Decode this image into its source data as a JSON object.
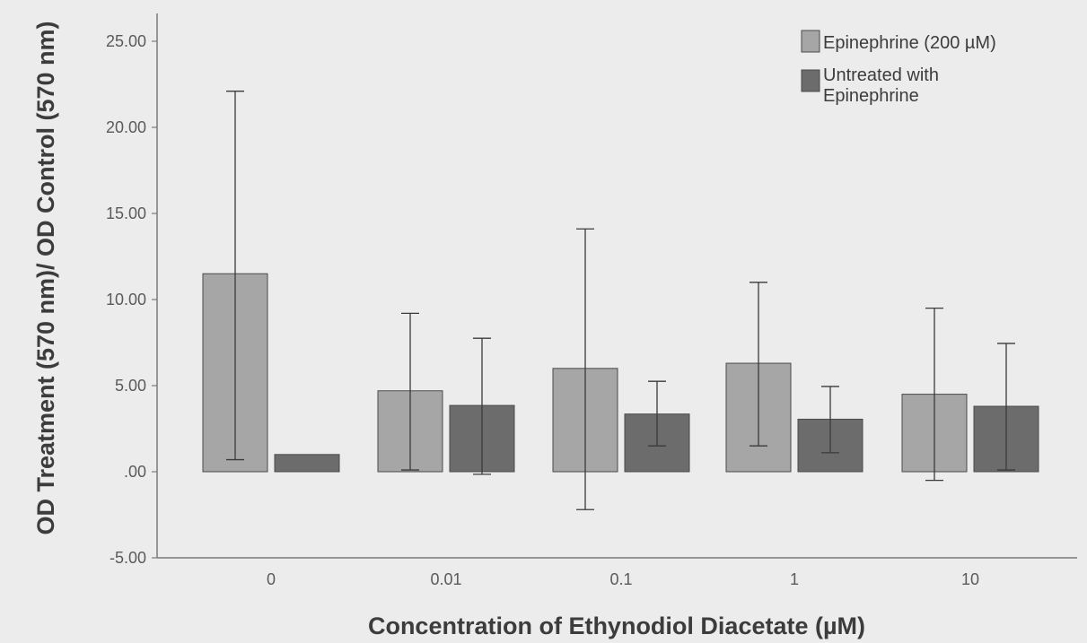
{
  "chart_data": {
    "type": "bar",
    "xlabel": "Concentration of Ethynodiol Diacetate (µM)",
    "ylabel": "OD Treatment (570 nm)/ OD Control (570 nm)",
    "ylim": [
      -5,
      25
    ],
    "yticks": [
      25,
      20,
      15,
      10,
      5,
      0,
      -5
    ],
    "ytick_labels": [
      "25.00",
      "20.00",
      "15.00",
      "10.00",
      "5.00",
      ".00",
      "-5.00"
    ],
    "categories": [
      "0",
      "0.01",
      "0.1",
      "1",
      "10"
    ],
    "grid": false,
    "legend_position": "top-right",
    "series": [
      {
        "name": "Epinephrine (200 µM)",
        "color": "#a6a6a6",
        "values": [
          11.5,
          4.7,
          6.0,
          6.3,
          4.5
        ],
        "err_low": [
          0.7,
          0.1,
          -2.2,
          1.5,
          -0.5
        ],
        "err_high": [
          22.1,
          9.2,
          14.1,
          11.0,
          9.5
        ]
      },
      {
        "name": "Untreated with Epinephrine",
        "color": "#6c6c6c",
        "values": [
          1.0,
          3.85,
          3.35,
          3.05,
          3.8
        ],
        "err_low": [
          1.0,
          -0.15,
          1.5,
          1.1,
          0.1
        ],
        "err_high": [
          1.0,
          7.75,
          5.25,
          4.95,
          7.45
        ]
      }
    ]
  }
}
